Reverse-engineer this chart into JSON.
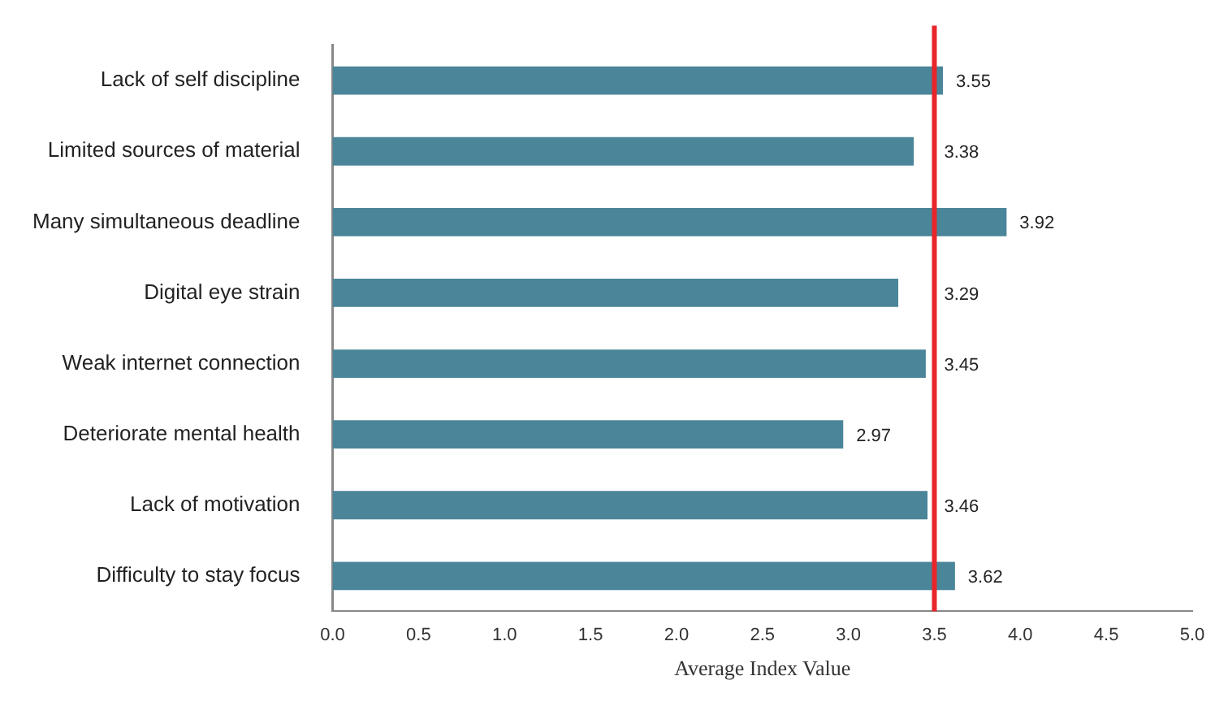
{
  "chart_data": {
    "type": "bar",
    "orientation": "horizontal",
    "xlabel": "Average Index Value",
    "categories": [
      "Lack of self discipline",
      "Limited sources of material",
      "Many simultaneous deadline",
      "Digital eye strain",
      "Weak internet connection",
      "Deteriorate mental health",
      "Lack of motivation",
      "Difficulty to stay focus"
    ],
    "values": [
      3.55,
      3.38,
      3.92,
      3.29,
      3.45,
      2.97,
      3.46,
      3.62
    ],
    "color": "#4a8599",
    "xlim": [
      0,
      5
    ],
    "xticks": [
      {
        "value": 0,
        "label": "0.0"
      },
      {
        "value": 0.5,
        "label": "0.5"
      },
      {
        "value": 1,
        "label": "1.0"
      },
      {
        "value": 1.5,
        "label": "1.5"
      },
      {
        "value": 2,
        "label": "2.0"
      },
      {
        "value": 2.5,
        "label": "2.5"
      },
      {
        "value": 3,
        "label": "3.0"
      },
      {
        "value": 3.5,
        "label": "3.5"
      },
      {
        "value": 4,
        "label": "4.0"
      },
      {
        "value": 4.5,
        "label": "4.5"
      },
      {
        "value": 5,
        "label": "5.0"
      }
    ],
    "ref_lines": [
      {
        "axis": "x",
        "value": 3.5,
        "color": "#e8262a"
      }
    ],
    "data_labels": true,
    "grid": false,
    "legend": false
  }
}
